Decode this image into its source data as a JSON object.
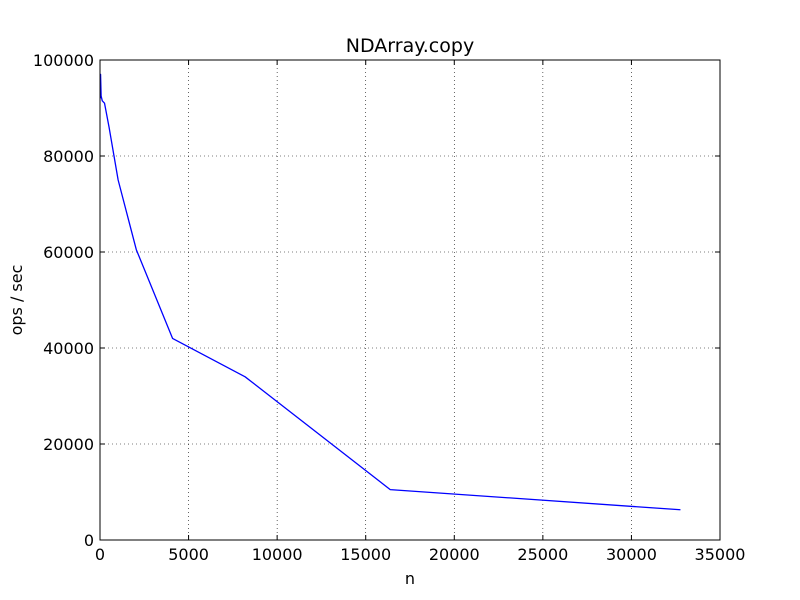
{
  "chart_data": {
    "type": "line",
    "title": "NDArray.copy",
    "xlabel": "n",
    "ylabel": "ops / sec",
    "xlim": [
      0,
      35000
    ],
    "ylim": [
      0,
      100000
    ],
    "xticks": [
      0,
      5000,
      10000,
      15000,
      20000,
      25000,
      30000,
      35000
    ],
    "yticks": [
      0,
      20000,
      40000,
      60000,
      80000,
      100000
    ],
    "grid": true,
    "series": [
      {
        "color": "#0000ff",
        "x": [
          16,
          32,
          64,
          128,
          256,
          512,
          1024,
          2048,
          4096,
          8192,
          16384,
          32768
        ],
        "y": [
          92000,
          97000,
          92500,
          91500,
          91000,
          86000,
          75000,
          60500,
          42000,
          34000,
          10500,
          6300
        ]
      }
    ]
  }
}
